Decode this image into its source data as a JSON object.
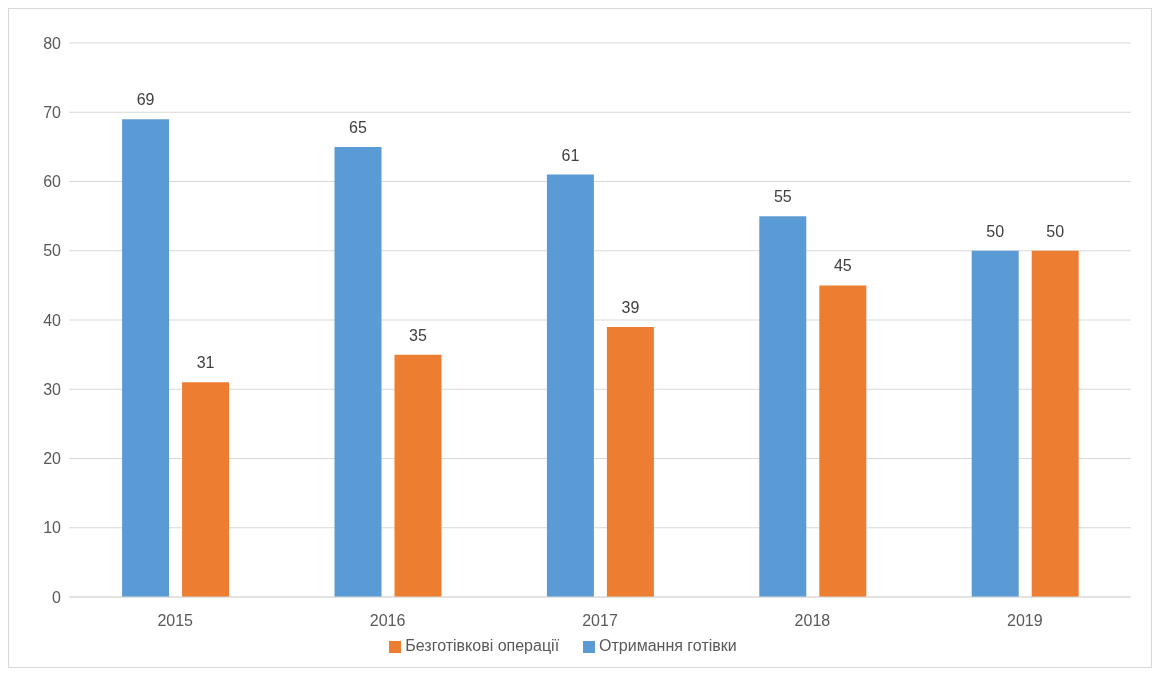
{
  "chart_data": {
    "type": "bar",
    "categories": [
      "2015",
      "2016",
      "2017",
      "2018",
      "2019"
    ],
    "series": [
      {
        "name": "Отримання готівки",
        "color": "#5b9bd5",
        "values": [
          69,
          65,
          61,
          55,
          50
        ]
      },
      {
        "name": "Безготівкові операції",
        "color": "#ed7d31",
        "values": [
          31,
          35,
          39,
          45,
          50
        ]
      }
    ],
    "ylim": [
      0,
      80
    ],
    "yticks": [
      0,
      10,
      20,
      30,
      40,
      50,
      60,
      70,
      80
    ],
    "grid": "y",
    "legend": "bottom",
    "data_labels": true
  }
}
